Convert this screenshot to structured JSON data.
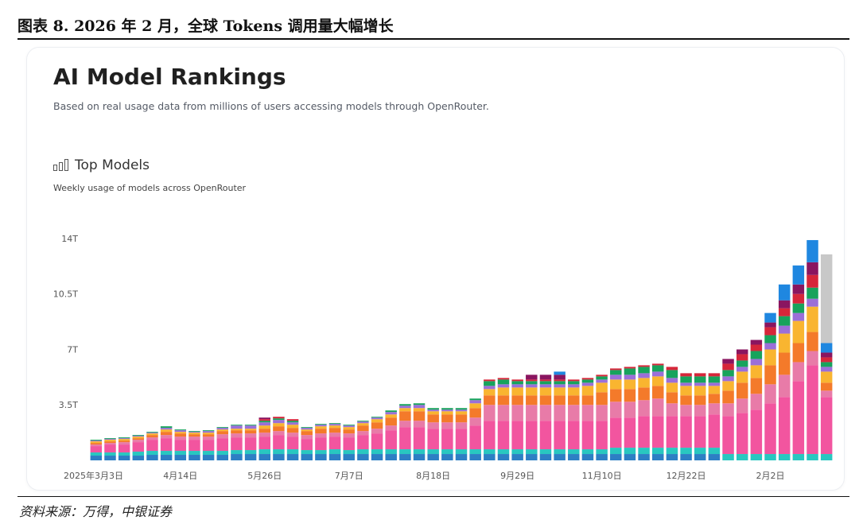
{
  "caption": "图表 8. 2026 年 2 月，全球 Tokens 调用量大幅增长",
  "card": {
    "title": "AI Model Rankings",
    "subtitle": "Based on real usage data from millions of users accessing models through OpenRouter.",
    "section_title": "Top Models",
    "section_subtitle": "Weekly usage of models across OpenRouter"
  },
  "source": "资料来源：万得，中银证券",
  "chart_data": {
    "type": "bar",
    "stacked": true,
    "y_unit": "tokens (T = trillion)",
    "ylim": [
      0,
      14.5
    ],
    "y_ticks": [
      {
        "value": 3.5,
        "label": "3.5T"
      },
      {
        "value": 7,
        "label": "7T"
      },
      {
        "value": 10.5,
        "label": "10.5T"
      },
      {
        "value": 14,
        "label": "14T"
      }
    ],
    "x_tick_labels": [
      {
        "index": 0,
        "label": "2025年3月3日"
      },
      {
        "index": 6,
        "label": "4月14日"
      },
      {
        "index": 12,
        "label": "5月26日"
      },
      {
        "index": 18,
        "label": "7月7日"
      },
      {
        "index": 24,
        "label": "8月18日"
      },
      {
        "index": 30,
        "label": "9月29日"
      },
      {
        "index": 36,
        "label": "11月10日"
      },
      {
        "index": 42,
        "label": "12月22日"
      },
      {
        "index": 48,
        "label": "2月2日"
      }
    ],
    "segment_colors": [
      "#2d7fc4",
      "#29c7c0",
      "#f2559f",
      "#e87ba8",
      "#f47a2a",
      "#f9b530",
      "#9b6fd8",
      "#17a35c",
      "#d6263a",
      "#8a1560",
      "#1f87e0",
      "#c8c8c8"
    ],
    "bars": [
      [
        0.3,
        0.2,
        0.4,
        0.1,
        0.1,
        0.1,
        0.05,
        0.05
      ],
      [
        0.3,
        0.2,
        0.5,
        0.1,
        0.1,
        0.1,
        0.05,
        0.05
      ],
      [
        0.3,
        0.2,
        0.5,
        0.15,
        0.1,
        0.1,
        0.05,
        0.05
      ],
      [
        0.3,
        0.25,
        0.6,
        0.15,
        0.1,
        0.1,
        0.05,
        0.05
      ],
      [
        0.35,
        0.25,
        0.7,
        0.15,
        0.15,
        0.1,
        0.05,
        0.05
      ],
      [
        0.35,
        0.25,
        0.8,
        0.2,
        0.2,
        0.15,
        0.1,
        0.1
      ],
      [
        0.35,
        0.25,
        0.7,
        0.2,
        0.2,
        0.1,
        0.1,
        0.05
      ],
      [
        0.35,
        0.25,
        0.7,
        0.2,
        0.15,
        0.1,
        0.05,
        0.05
      ],
      [
        0.35,
        0.25,
        0.7,
        0.2,
        0.15,
        0.1,
        0.1,
        0.05
      ],
      [
        0.35,
        0.25,
        0.8,
        0.25,
        0.2,
        0.1,
        0.1,
        0.05
      ],
      [
        0.4,
        0.25,
        0.8,
        0.25,
        0.2,
        0.1,
        0.2,
        0.05
      ],
      [
        0.4,
        0.25,
        0.8,
        0.25,
        0.2,
        0.1,
        0.2,
        0.05
      ],
      [
        0.4,
        0.3,
        0.8,
        0.25,
        0.25,
        0.2,
        0.2,
        0.1,
        0.1,
        0.1
      ],
      [
        0.4,
        0.3,
        0.9,
        0.25,
        0.3,
        0.2,
        0.2,
        0.1,
        0.1
      ],
      [
        0.4,
        0.3,
        0.8,
        0.25,
        0.3,
        0.2,
        0.15,
        0.1,
        0.1
      ],
      [
        0.4,
        0.25,
        0.7,
        0.25,
        0.25,
        0.1,
        0.1,
        0.05
      ],
      [
        0.4,
        0.25,
        0.8,
        0.25,
        0.3,
        0.15,
        0.1,
        0.05
      ],
      [
        0.4,
        0.3,
        0.8,
        0.25,
        0.3,
        0.15,
        0.1,
        0.05
      ],
      [
        0.4,
        0.25,
        0.8,
        0.25,
        0.25,
        0.15,
        0.1,
        0.05
      ],
      [
        0.4,
        0.3,
        0.9,
        0.25,
        0.35,
        0.15,
        0.1,
        0.05
      ],
      [
        0.4,
        0.3,
        1.0,
        0.3,
        0.4,
        0.2,
        0.1,
        0.05
      ],
      [
        0.4,
        0.3,
        1.2,
        0.3,
        0.5,
        0.2,
        0.15,
        0.1
      ],
      [
        0.4,
        0.3,
        1.4,
        0.4,
        0.6,
        0.2,
        0.15,
        0.1
      ],
      [
        0.4,
        0.3,
        1.4,
        0.4,
        0.6,
        0.2,
        0.2,
        0.1
      ],
      [
        0.4,
        0.3,
        1.3,
        0.4,
        0.5,
        0.2,
        0.1,
        0.1
      ],
      [
        0.4,
        0.3,
        1.3,
        0.4,
        0.5,
        0.2,
        0.1,
        0.1
      ],
      [
        0.4,
        0.3,
        1.3,
        0.4,
        0.5,
        0.2,
        0.1,
        0.1
      ],
      [
        0.4,
        0.3,
        1.5,
        0.5,
        0.6,
        0.3,
        0.2,
        0.1
      ],
      [
        0.4,
        0.3,
        1.8,
        1.0,
        0.6,
        0.4,
        0.2,
        0.3,
        0.1
      ],
      [
        0.4,
        0.3,
        1.8,
        1.0,
        0.6,
        0.5,
        0.2,
        0.3,
        0.1
      ],
      [
        0.4,
        0.3,
        1.8,
        1.0,
        0.6,
        0.5,
        0.2,
        0.2,
        0.1
      ],
      [
        0.4,
        0.3,
        1.8,
        1.0,
        0.6,
        0.5,
        0.2,
        0.2,
        0.1,
        0.3
      ],
      [
        0.4,
        0.3,
        1.8,
        1.0,
        0.6,
        0.5,
        0.2,
        0.2,
        0.1,
        0.3
      ],
      [
        0.4,
        0.3,
        1.8,
        1.0,
        0.6,
        0.5,
        0.2,
        0.2,
        0.1,
        0.3,
        0.2
      ],
      [
        0.4,
        0.3,
        1.8,
        1.0,
        0.6,
        0.5,
        0.2,
        0.2,
        0.1
      ],
      [
        0.4,
        0.3,
        1.8,
        1.0,
        0.6,
        0.6,
        0.2,
        0.2,
        0.1
      ],
      [
        0.4,
        0.3,
        1.8,
        1.0,
        0.8,
        0.6,
        0.2,
        0.2,
        0.1
      ],
      [
        0.4,
        0.4,
        1.9,
        1.0,
        0.8,
        0.6,
        0.3,
        0.3,
        0.1
      ],
      [
        0.4,
        0.4,
        1.9,
        1.0,
        0.8,
        0.6,
        0.3,
        0.4,
        0.1
      ],
      [
        0.4,
        0.4,
        2.0,
        1.0,
        0.8,
        0.6,
        0.3,
        0.4,
        0.1
      ],
      [
        0.4,
        0.4,
        2.0,
        1.1,
        0.8,
        0.6,
        0.3,
        0.4,
        0.1
      ],
      [
        0.4,
        0.4,
        2.0,
        0.8,
        0.7,
        0.6,
        0.3,
        0.5,
        0.2
      ],
      [
        0.4,
        0.4,
        2.0,
        0.7,
        0.6,
        0.6,
        0.2,
        0.4,
        0.2
      ],
      [
        0.4,
        0.4,
        2.0,
        0.7,
        0.6,
        0.6,
        0.2,
        0.4,
        0.2
      ],
      [
        0.4,
        0.4,
        2.1,
        0.7,
        0.6,
        0.5,
        0.2,
        0.4,
        0.2
      ],
      [
        0.0,
        0.4,
        2.4,
        0.8,
        0.8,
        0.6,
        0.3,
        0.4,
        0.4,
        0.3
      ],
      [
        0.0,
        0.4,
        2.6,
        0.9,
        1.0,
        0.7,
        0.3,
        0.4,
        0.4,
        0.3
      ],
      [
        0.0,
        0.4,
        2.8,
        1.0,
        1.0,
        0.8,
        0.4,
        0.5,
        0.4,
        0.3
      ],
      [
        0.0,
        0.4,
        3.2,
        1.2,
        1.2,
        1.0,
        0.4,
        0.5,
        0.5,
        0.3,
        0.6
      ],
      [
        0.0,
        0.4,
        3.6,
        1.4,
        1.4,
        1.2,
        0.5,
        0.6,
        0.5,
        0.5,
        1.0
      ],
      [
        0.0,
        0.4,
        4.6,
        1.2,
        1.2,
        1.4,
        0.5,
        0.6,
        0.6,
        0.6,
        1.2
      ],
      [
        0.0,
        0.4,
        5.6,
        0.9,
        1.2,
        1.6,
        0.5,
        0.7,
        0.8,
        0.8,
        1.4
      ],
      [
        0.0,
        0.4,
        3.6,
        0.4,
        0.5,
        0.7,
        0.3,
        0.3,
        0.3,
        0.3,
        0.6,
        5.6
      ]
    ]
  }
}
